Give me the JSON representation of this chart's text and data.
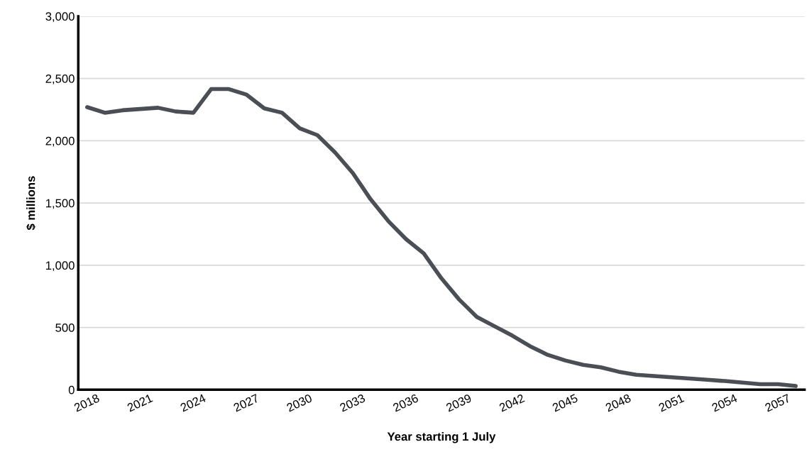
{
  "chart_data": {
    "type": "line",
    "xlabel": "Year starting 1 July",
    "ylabel": "$ millions",
    "categories": [
      "2018",
      null,
      null,
      "2021",
      null,
      null,
      "2024",
      null,
      null,
      "2027",
      null,
      null,
      "2030",
      null,
      null,
      "2033",
      null,
      null,
      "2036",
      null,
      null,
      "2039",
      null,
      null,
      "2042",
      null,
      null,
      "2045",
      null,
      null,
      "2048",
      null,
      null,
      "2051",
      null,
      null,
      "2054",
      null,
      null,
      "2057",
      null
    ],
    "series": [
      {
        "color": "#4a4e55",
        "values": [
          2270,
          2225,
          2245,
          2255,
          2265,
          2235,
          2225,
          2415,
          2415,
          2370,
          2260,
          2225,
          2100,
          2045,
          1905,
          1740,
          1530,
          1355,
          1210,
          1095,
          895,
          725,
          585,
          510,
          435,
          350,
          280,
          235,
          200,
          180,
          145,
          120,
          110,
          100,
          90,
          80,
          70,
          58,
          45,
          45,
          30
        ]
      }
    ],
    "ylim": [
      0,
      3000
    ],
    "yticks": [
      {
        "value": 0,
        "label": "0"
      },
      {
        "value": 500,
        "label": "500"
      },
      {
        "value": 1000,
        "label": "1,000"
      },
      {
        "value": 1500,
        "label": "1,500"
      },
      {
        "value": 2000,
        "label": "2,000"
      },
      {
        "value": 2500,
        "label": "2,500"
      },
      {
        "value": 3000,
        "label": "3,000"
      }
    ],
    "grid": "y",
    "marker": "none",
    "line_style": "solid"
  }
}
